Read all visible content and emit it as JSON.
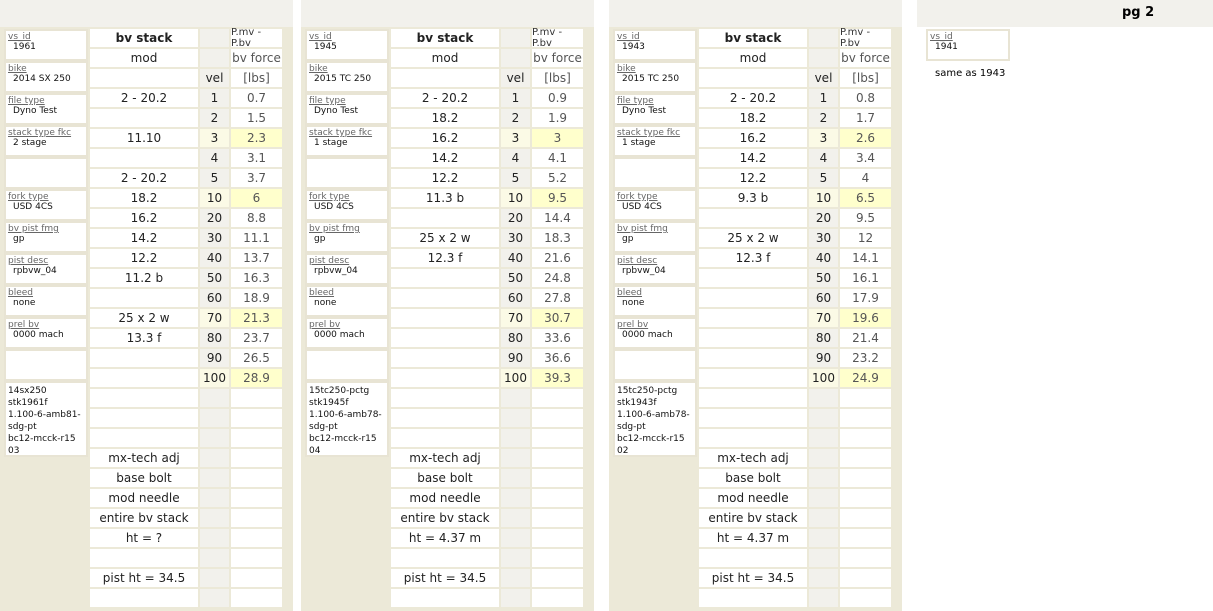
{
  "headers": {
    "stack": "bv stack",
    "mod": "mod",
    "pmv": "P.mv - P.bv",
    "force": "bv force",
    "vel": "vel",
    "unit": "[lbs]"
  },
  "labels": {
    "vs_id": "vs_id",
    "bike": "bike",
    "file_type": "file type",
    "stack_type": "stack type fkc",
    "fork_type": "fork type",
    "bv_pist_fmg": "bv pist fmg",
    "pist_desc": "pist desc",
    "bleed": "bleed",
    "prel_bv": "prel bv"
  },
  "vels": [
    "1",
    "2",
    "3",
    "4",
    "5",
    "10",
    "20",
    "30",
    "40",
    "50",
    "60",
    "70",
    "80",
    "90",
    "100"
  ],
  "highlight_vels": [
    "3",
    "10",
    "70",
    "100"
  ],
  "panels": [
    {
      "vs_id": "1961",
      "bike": "2014 SX 250",
      "file_type": "Dyno Test",
      "stack_type": "2 stage",
      "fork_type": "USD 4CS",
      "bv_pist_fmg": "gp",
      "pist_desc": "rpbvw_04",
      "bleed": "none",
      "prel_bv": "0000 mach",
      "notes": "14sx250\nstk1961f\n1.100-6-amb81-\nsdg-pt\nbc12-mcck-r15\n03",
      "mods": [
        "2 - 20.2",
        "",
        "11.10",
        "",
        "2 - 20.2",
        "18.2",
        "16.2",
        "14.2",
        "12.2",
        "11.2 b",
        "",
        "25 x 2 w",
        "13.3 f",
        "",
        ""
      ],
      "forces": [
        "0.7",
        "1.5",
        "2.3",
        "3.1",
        "3.7",
        "6",
        "8.8",
        "11.1",
        "13.7",
        "16.3",
        "18.9",
        "21.3",
        "23.7",
        "26.5",
        "28.9"
      ],
      "footer": [
        "",
        "",
        "",
        "mx-tech adj",
        "base bolt",
        "mod needle",
        "entire bv stack",
        "ht = ?",
        "",
        "pist ht = 34.5",
        ""
      ]
    },
    {
      "vs_id": "1945",
      "bike": "2015 TC 250",
      "file_type": "Dyno Test",
      "stack_type": "1 stage",
      "fork_type": "USD 4CS",
      "bv_pist_fmg": "gp",
      "pist_desc": "rpbvw_04",
      "bleed": "none",
      "prel_bv": "0000 mach",
      "notes": "15tc250-pctg\nstk1945f\n1.100-6-amb78-\nsdg-pt\nbc12-mcck-r15\n04",
      "mods": [
        "2 - 20.2",
        "18.2",
        "16.2",
        "14.2",
        "12.2",
        "11.3 b",
        "",
        "25 x 2 w",
        "12.3 f",
        "",
        "",
        "",
        "",
        "",
        ""
      ],
      "forces": [
        "0.9",
        "1.9",
        "3",
        "4.1",
        "5.2",
        "9.5",
        "14.4",
        "18.3",
        "21.6",
        "24.8",
        "27.8",
        "30.7",
        "33.6",
        "36.6",
        "39.3"
      ],
      "footer": [
        "",
        "",
        "",
        "mx-tech adj",
        "base bolt",
        "mod needle",
        "entire bv stack",
        "ht = 4.37 m",
        "",
        "pist ht = 34.5",
        ""
      ]
    },
    {
      "vs_id": "1943",
      "bike": "2015 TC 250",
      "file_type": "Dyno Test",
      "stack_type": "1 stage",
      "fork_type": "USD 4CS",
      "bv_pist_fmg": "gp",
      "pist_desc": "rpbvw_04",
      "bleed": "none",
      "prel_bv": "0000 mach",
      "notes": "15tc250-pctg\nstk1943f\n1.100-6-amb78-\nsdg-pt\nbc12-mcck-r15\n02",
      "mods": [
        "2 - 20.2",
        "18.2",
        "16.2",
        "14.2",
        "12.2",
        "9.3 b",
        "",
        "25 x 2 w",
        "12.3 f",
        "",
        "",
        "",
        "",
        "",
        ""
      ],
      "forces": [
        "0.8",
        "1.7",
        "2.6",
        "3.4",
        "4",
        "6.5",
        "9.5",
        "12",
        "14.1",
        "16.1",
        "17.9",
        "19.6",
        "21.4",
        "23.2",
        "24.9"
      ],
      "footer": [
        "",
        "",
        "",
        "mx-tech adj",
        "base bolt",
        "mod needle",
        "entire bv stack",
        "ht = 4.37 m",
        "",
        "pist ht = 34.5",
        ""
      ]
    }
  ],
  "page2": {
    "title": "pg 2",
    "vs_id": "1941",
    "note": "same as 1943"
  }
}
